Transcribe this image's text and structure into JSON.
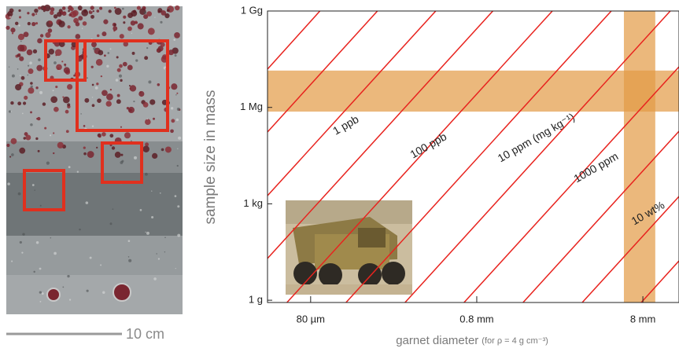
{
  "chart_data": {
    "type": "line",
    "ylabel": "sample size in mass",
    "xlabel": "garnet diameter",
    "xlabel_note": "(for ρ = 4 g cm⁻³)",
    "xscale": "log",
    "yscale": "log",
    "xlim": [
      0.044,
      13.2
    ],
    "ylim": [
      0.85,
      1000000000
    ],
    "xticks": [
      {
        "value": 0.08,
        "label": "80 µm"
      },
      {
        "value": 0.8,
        "label": "0.8 mm"
      },
      {
        "value": 8,
        "label": "8 mm"
      }
    ],
    "yticks": [
      {
        "value": 1,
        "label": "1 g"
      },
      {
        "value": 1000,
        "label": "1 kg"
      },
      {
        "value": 1000000,
        "label": "1 Mg"
      },
      {
        "value": 1000000000,
        "label": "1 Gg"
      }
    ],
    "line_color": "#e8231e",
    "band_color": "#e39a45",
    "lines": [
      {
        "x": [
          0.044,
          0.091
        ],
        "values": [
          15500000,
          1000000000
        ]
      },
      {
        "x": [
          0.044,
          0.202
        ],
        "values": [
          172000,
          1000000000
        ]
      },
      {
        "name": "1 ppb",
        "x": [
          0.044,
          0.453
        ],
        "values": [
          1800,
          1000000000
        ]
      },
      {
        "x": [
          0.044,
          1.0
        ],
        "values": [
          20,
          1000000000
        ]
      },
      {
        "name": "100 ppb",
        "x": [
          0.0576,
          2.28
        ],
        "values": [
          0.85,
          1000000000
        ]
      },
      {
        "name": "10 ppm (mg kg⁻¹)",
        "x": [
          0.1306,
          5.16
        ],
        "values": [
          0.85,
          1000000000
        ]
      },
      {
        "x": [
          0.296,
          11.7
        ],
        "values": [
          0.85,
          1000000000
        ]
      },
      {
        "name": "1000 ppm",
        "x": [
          0.671,
          13.2
        ],
        "values": [
          0.85,
          18400000
        ]
      },
      {
        "x": [
          1.52,
          13.2
        ],
        "values": [
          0.85,
          182000
        ]
      },
      {
        "name": "10 wt%",
        "x": [
          3.45,
          13.2
        ],
        "values": [
          0.85,
          1700
        ]
      },
      {
        "x": [
          7.82,
          13.2
        ],
        "values": [
          0.85,
          16.8
        ]
      }
    ],
    "bands": [
      {
        "axis": "y",
        "range": [
          740000,
          14000000
        ]
      },
      {
        "axis": "x",
        "range": [
          6.15,
          9.5
        ]
      }
    ]
  },
  "scale_bar": "10 cm"
}
